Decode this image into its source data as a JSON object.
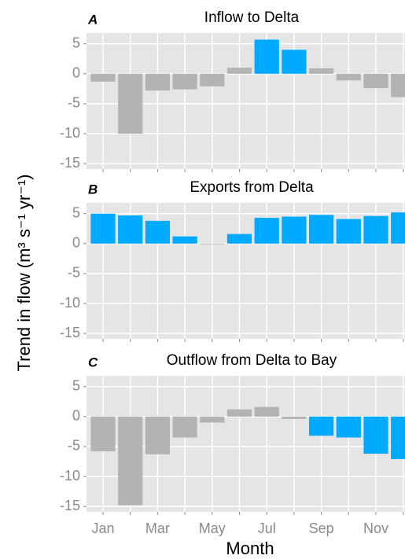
{
  "chart_data": [
    {
      "type": "bar",
      "panel": "A",
      "title": "Inflow to Delta",
      "categories": [
        "Jan",
        null,
        "Mar",
        null,
        "May",
        null,
        "Jul",
        null,
        "Sep",
        null,
        "Nov",
        null
      ],
      "values": [
        -1.3,
        -10,
        -2.8,
        -2.6,
        -2.1,
        1.0,
        5.7,
        4.0,
        0.9,
        -1.1,
        -2.4,
        -3.9
      ],
      "colors": [
        "#b3b3b3",
        "#b3b3b3",
        "#b3b3b3",
        "#b3b3b3",
        "#b3b3b3",
        "#b3b3b3",
        "#00aaff",
        "#00aaff",
        "#b3b3b3",
        "#b3b3b3",
        "#b3b3b3",
        "#b3b3b3"
      ],
      "ylim": [
        -15.9,
        6.8
      ],
      "yticks": [
        5,
        0,
        -5,
        -10,
        -15
      ],
      "grid": true
    },
    {
      "type": "bar",
      "panel": "B",
      "title": "Exports from Delta",
      "ylabel": "Trend in flow (m³ s⁻¹ yr⁻¹)",
      "categories": [
        "Jan",
        null,
        "Mar",
        null,
        "May",
        null,
        "Jul",
        null,
        "Sep",
        null,
        "Nov",
        null
      ],
      "values": [
        5.0,
        4.7,
        3.8,
        1.2,
        -0.1,
        1.6,
        4.3,
        4.5,
        4.8,
        4.1,
        4.6,
        5.2
      ],
      "colors": [
        "#00aaff",
        "#00aaff",
        "#00aaff",
        "#00aaff",
        "#b3b3b3",
        "#00aaff",
        "#00aaff",
        "#00aaff",
        "#00aaff",
        "#00aaff",
        "#00aaff",
        "#00aaff"
      ],
      "ylim": [
        -15.9,
        6.8
      ],
      "yticks": [
        5,
        0,
        -5,
        -10,
        -15
      ],
      "grid": true
    },
    {
      "type": "bar",
      "panel": "C",
      "title": "Outflow from Delta to Bay",
      "xlabel": "Month",
      "categories": [
        "Jan",
        null,
        "Mar",
        null,
        "May",
        null,
        "Jul",
        null,
        "Sep",
        null,
        "Nov",
        null
      ],
      "values": [
        -5.8,
        -14.8,
        -6.3,
        -3.5,
        -1.0,
        1.2,
        1.6,
        -0.4,
        -3.2,
        -3.5,
        -6.2,
        -7.1
      ],
      "colors": [
        "#b3b3b3",
        "#b3b3b3",
        "#b3b3b3",
        "#b3b3b3",
        "#b3b3b3",
        "#b3b3b3",
        "#b3b3b3",
        "#b3b3b3",
        "#00aaff",
        "#00aaff",
        "#00aaff",
        "#00aaff"
      ],
      "ylim": [
        -15.9,
        6.8
      ],
      "yticks": [
        5,
        0,
        -5,
        -10,
        -15
      ],
      "grid": true
    }
  ]
}
